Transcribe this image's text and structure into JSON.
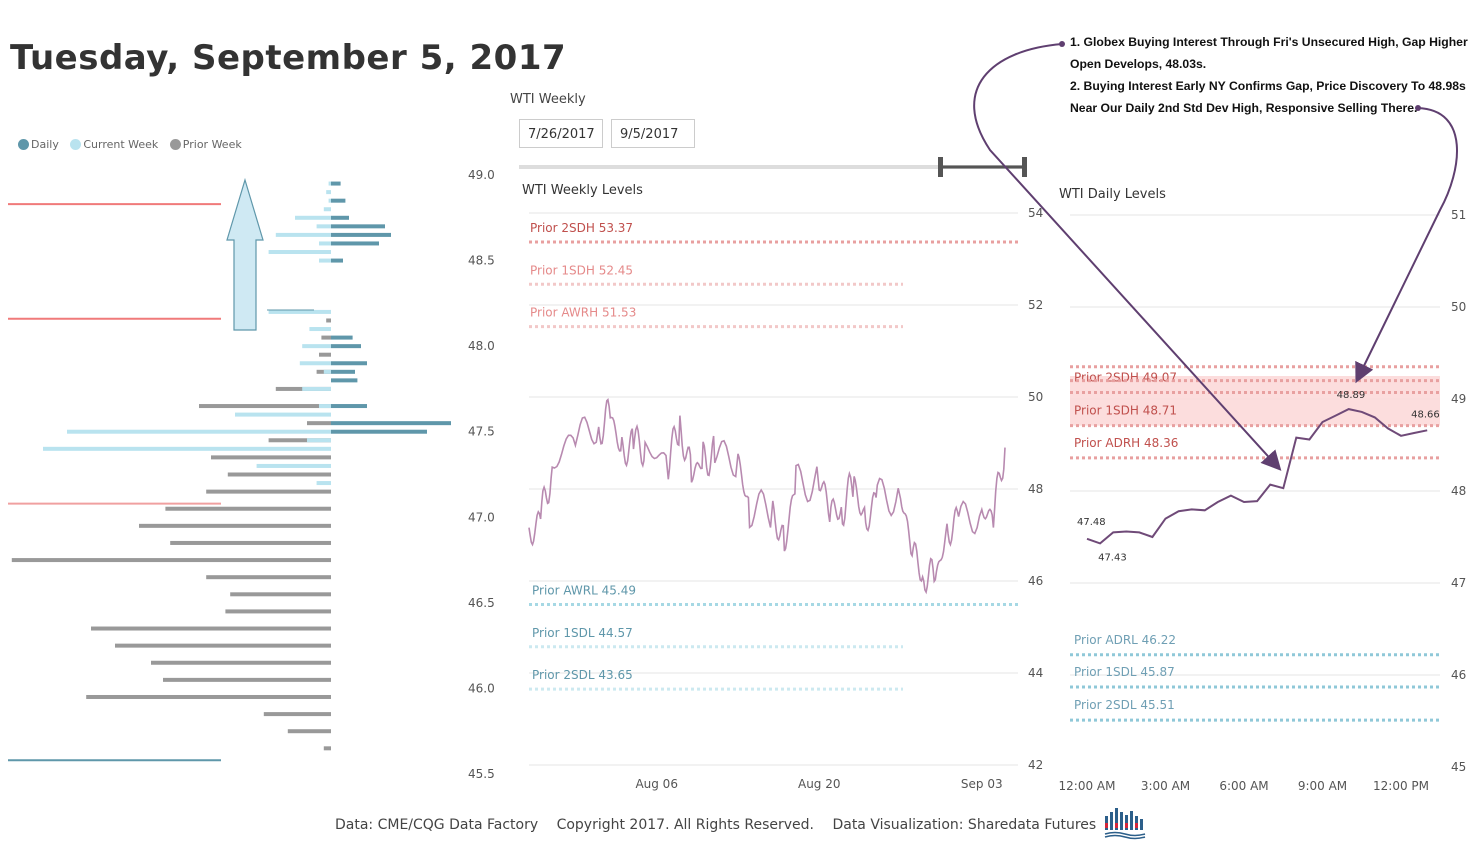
{
  "page": {
    "title": "Tuesday, September 5, 2017"
  },
  "legend": {
    "items": [
      {
        "label": "Daily",
        "color": "#5f97aa"
      },
      {
        "label": "Current Week",
        "color": "#b9e3ef"
      },
      {
        "label": "Prior Week",
        "color": "#999999"
      }
    ]
  },
  "weekly_header": {
    "title": "WTI Weekly",
    "start_date": "7/26/2017",
    "end_date": "9/5/2017"
  },
  "annotation": {
    "lines": [
      "1. Globex Buying Interest Through Fri's Unsecured High, Gap Higher Open Develops, 48.03s.",
      "2. Buying Interest Early NY Confirms Gap, Price Discovery To 48.98s Near Our Daily 2nd Std Dev High, Responsive Selling There."
    ]
  },
  "footer": {
    "source": "Data: CME/CQG Data Factory",
    "copyright": "Copyright 2017. All Rights Reserved.",
    "credit": "Data Visualization: Sharedata Futures"
  },
  "chart_data": [
    {
      "type": "bar",
      "orientation": "horizontal",
      "ylim": [
        45.5,
        49.0
      ],
      "y_ticks": [
        "49.0",
        "48.5",
        "48.0",
        "47.5",
        "47.0",
        "46.5",
        "46.0",
        "45.5"
      ],
      "price_levels": [
        48.95,
        48.9,
        48.85,
        48.8,
        48.75,
        48.7,
        48.65,
        48.6,
        48.55,
        48.5,
        48.2,
        48.15,
        48.1,
        48.05,
        48.0,
        47.95,
        47.9,
        47.85,
        47.8,
        47.75,
        47.7,
        47.65,
        47.6,
        47.55,
        47.5,
        47.45,
        47.4,
        47.35,
        47.3,
        47.25,
        47.2,
        47.15,
        47.1,
        47.05,
        47.0,
        46.95,
        46.9,
        46.85,
        46.8,
        46.75,
        46.7,
        46.65,
        46.6,
        46.55,
        46.5,
        46.45,
        46.4,
        46.35,
        46.3,
        46.25,
        46.2,
        46.15,
        46.1,
        46.05,
        46.0,
        45.95,
        45.9,
        45.85,
        45.8,
        45.75,
        45.7
      ],
      "series": [
        {
          "name": "Daily",
          "side": "right",
          "values": [
            {
              "p": 48.95,
              "v": 8
            },
            {
              "p": 48.85,
              "v": 12
            },
            {
              "p": 48.75,
              "v": 15
            },
            {
              "p": 48.7,
              "v": 45
            },
            {
              "p": 48.65,
              "v": 50
            },
            {
              "p": 48.6,
              "v": 40
            },
            {
              "p": 48.5,
              "v": 10
            },
            {
              "p": 48.05,
              "v": 18
            },
            {
              "p": 48.0,
              "v": 25
            },
            {
              "p": 47.9,
              "v": 30
            },
            {
              "p": 47.85,
              "v": 20
            },
            {
              "p": 47.8,
              "v": 22
            },
            {
              "p": 47.65,
              "v": 30
            },
            {
              "p": 47.55,
              "v": 100
            },
            {
              "p": 47.5,
              "v": 80
            }
          ]
        },
        {
          "name": "Current Week",
          "side": "left",
          "values": [
            {
              "p": 48.95,
              "v": 2
            },
            {
              "p": 48.9,
              "v": 4
            },
            {
              "p": 48.85,
              "v": 2
            },
            {
              "p": 48.8,
              "v": 6
            },
            {
              "p": 48.75,
              "v": 30
            },
            {
              "p": 48.7,
              "v": 12
            },
            {
              "p": 48.65,
              "v": 46
            },
            {
              "p": 48.6,
              "v": 10
            },
            {
              "p": 48.55,
              "v": 52
            },
            {
              "p": 48.5,
              "v": 10
            },
            {
              "p": 48.2,
              "v": 52
            },
            {
              "p": 48.1,
              "v": 18
            },
            {
              "p": 48.0,
              "v": 24
            },
            {
              "p": 47.9,
              "v": 26
            },
            {
              "p": 47.85,
              "v": 6
            },
            {
              "p": 47.75,
              "v": 24
            },
            {
              "p": 47.65,
              "v": 10
            },
            {
              "p": 47.6,
              "v": 80
            },
            {
              "p": 47.5,
              "v": 220
            },
            {
              "p": 47.45,
              "v": 20
            },
            {
              "p": 47.4,
              "v": 240
            },
            {
              "p": 47.3,
              "v": 62
            },
            {
              "p": 47.2,
              "v": 12
            }
          ]
        },
        {
          "name": "Prior Week",
          "side": "left",
          "values": [
            {
              "p": 48.15,
              "v": 4
            },
            {
              "p": 48.05,
              "v": 8
            },
            {
              "p": 47.95,
              "v": 10
            },
            {
              "p": 47.85,
              "v": 12
            },
            {
              "p": 47.75,
              "v": 46
            },
            {
              "p": 47.65,
              "v": 110
            },
            {
              "p": 47.55,
              "v": 20
            },
            {
              "p": 47.45,
              "v": 52
            },
            {
              "p": 47.35,
              "v": 100
            },
            {
              "p": 47.25,
              "v": 86
            },
            {
              "p": 47.15,
              "v": 104
            },
            {
              "p": 47.05,
              "v": 138
            },
            {
              "p": 46.95,
              "v": 160
            },
            {
              "p": 46.85,
              "v": 134
            },
            {
              "p": 46.75,
              "v": 266
            },
            {
              "p": 46.65,
              "v": 104
            },
            {
              "p": 46.55,
              "v": 84
            },
            {
              "p": 46.45,
              "v": 88
            },
            {
              "p": 46.35,
              "v": 200
            },
            {
              "p": 46.25,
              "v": 180
            },
            {
              "p": 46.15,
              "v": 150
            },
            {
              "p": 46.05,
              "v": 140
            },
            {
              "p": 45.95,
              "v": 204
            },
            {
              "p": 45.85,
              "v": 56
            },
            {
              "p": 45.75,
              "v": 36
            },
            {
              "p": 45.65,
              "v": 6
            }
          ]
        }
      ],
      "reference_lines": [
        {
          "price": 48.83,
          "color": "#f07a7a"
        },
        {
          "price": 48.16,
          "color": "#f07a7a"
        },
        {
          "price": 47.08,
          "color": "#f0a0a0"
        },
        {
          "price": 45.58,
          "color": "#5f97aa"
        }
      ]
    },
    {
      "type": "line",
      "title": "WTI Weekly Levels",
      "ylim": [
        42,
        54
      ],
      "y_ticks": [
        "54",
        "52",
        "50",
        "48",
        "46",
        "44",
        "42"
      ],
      "x_labels": [
        "Aug 06",
        "Aug 20",
        "Sep 03"
      ],
      "series": [
        {
          "color": "#b88ab0",
          "values": [
            {
              "x": "2017-07-26",
              "y": 47.0
            },
            {
              "x": "2017-07-27",
              "y": 47.3
            },
            {
              "x": "2017-07-28",
              "y": 48.5
            },
            {
              "x": "2017-07-30",
              "y": 49.2
            },
            {
              "x": "2017-08-01",
              "y": 49.3
            },
            {
              "x": "2017-08-02",
              "y": 49.6
            },
            {
              "x": "2017-08-03",
              "y": 48.8
            },
            {
              "x": "2017-08-04",
              "y": 49.0
            },
            {
              "x": "2017-08-05",
              "y": 48.9
            },
            {
              "x": "2017-08-07",
              "y": 48.6
            },
            {
              "x": "2017-08-08",
              "y": 49.4
            },
            {
              "x": "2017-08-09",
              "y": 48.3
            },
            {
              "x": "2017-08-10",
              "y": 48.6
            },
            {
              "x": "2017-08-11",
              "y": 48.8
            },
            {
              "x": "2017-08-13",
              "y": 48.6
            },
            {
              "x": "2017-08-14",
              "y": 47.6
            },
            {
              "x": "2017-08-16",
              "y": 47.5
            },
            {
              "x": "2017-08-17",
              "y": 46.8
            },
            {
              "x": "2017-08-18",
              "y": 48.1
            },
            {
              "x": "2017-08-20",
              "y": 48.2
            },
            {
              "x": "2017-08-21",
              "y": 47.5
            },
            {
              "x": "2017-08-22",
              "y": 47.6
            },
            {
              "x": "2017-08-23",
              "y": 48.1
            },
            {
              "x": "2017-08-24",
              "y": 47.3
            },
            {
              "x": "2017-08-25",
              "y": 47.8
            },
            {
              "x": "2017-08-27",
              "y": 47.9
            },
            {
              "x": "2017-08-28",
              "y": 46.6
            },
            {
              "x": "2017-08-29",
              "y": 46.2
            },
            {
              "x": "2017-08-30",
              "y": 46.0
            },
            {
              "x": "2017-08-31",
              "y": 47.1
            },
            {
              "x": "2017-09-01",
              "y": 47.3
            },
            {
              "x": "2017-09-03",
              "y": 47.5
            },
            {
              "x": "2017-09-04",
              "y": 47.4
            },
            {
              "x": "2017-09-05",
              "y": 48.9
            }
          ]
        }
      ],
      "levels": [
        {
          "label": "Prior 2SDH 53.37",
          "value": 53.37,
          "color": "#e8a0a0",
          "style": "dotted"
        },
        {
          "label": "Prior 1SDH 52.45",
          "value": 52.45,
          "color": "#f2c8c8",
          "style": "dotted"
        },
        {
          "label": "Prior AWRH 51.53",
          "value": 51.53,
          "color": "#f2c8c8",
          "style": "dotted"
        },
        {
          "label": "Prior AWRL 45.49",
          "value": 45.49,
          "color": "#a6d8e4",
          "style": "dotted"
        },
        {
          "label": "Prior 1SDL 44.57",
          "value": 44.57,
          "color": "#cce9f0",
          "style": "dotted"
        },
        {
          "label": "Prior 2SDL 43.65",
          "value": 43.65,
          "color": "#cce9f0",
          "style": "dotted"
        }
      ]
    },
    {
      "type": "line",
      "title": "WTI Daily Levels",
      "ylim": [
        45,
        51.3
      ],
      "y_ticks": [
        "51",
        "50",
        "49",
        "48",
        "47",
        "46",
        "45"
      ],
      "x_labels": [
        "12:00 AM",
        "3:00 AM",
        "6:00 AM",
        "9:00 AM",
        "12:00 PM"
      ],
      "series": [
        {
          "color": "#6f4a78",
          "values": [
            {
              "x": "00:00",
              "y": 47.48
            },
            {
              "x": "00:30",
              "y": 47.43
            },
            {
              "x": "01:00",
              "y": 47.55
            },
            {
              "x": "01:30",
              "y": 47.56
            },
            {
              "x": "02:00",
              "y": 47.55
            },
            {
              "x": "02:30",
              "y": 47.5
            },
            {
              "x": "03:00",
              "y": 47.7
            },
            {
              "x": "03:30",
              "y": 47.78
            },
            {
              "x": "04:00",
              "y": 47.8
            },
            {
              "x": "04:30",
              "y": 47.79
            },
            {
              "x": "05:00",
              "y": 47.88
            },
            {
              "x": "05:30",
              "y": 47.95
            },
            {
              "x": "06:00",
              "y": 47.88
            },
            {
              "x": "06:30",
              "y": 47.89
            },
            {
              "x": "07:00",
              "y": 48.07
            },
            {
              "x": "07:30",
              "y": 48.03
            },
            {
              "x": "08:00",
              "y": 48.58
            },
            {
              "x": "08:30",
              "y": 48.56
            },
            {
              "x": "09:00",
              "y": 48.75
            },
            {
              "x": "09:30",
              "y": 48.82
            },
            {
              "x": "10:00",
              "y": 48.89
            },
            {
              "x": "10:30",
              "y": 48.86
            },
            {
              "x": "11:00",
              "y": 48.8
            },
            {
              "x": "11:30",
              "y": 48.68
            },
            {
              "x": "12:00",
              "y": 48.6
            },
            {
              "x": "12:30",
              "y": 48.63
            },
            {
              "x": "13:00",
              "y": 48.66
            }
          ]
        }
      ],
      "point_labels": [
        {
          "x": "00:00",
          "y": 47.48,
          "label": "47.48"
        },
        {
          "x": "00:30",
          "y": 47.43,
          "label": "47.43"
        },
        {
          "x": "10:00",
          "y": 48.89,
          "label": "48.89"
        },
        {
          "x": "13:00",
          "y": 48.66,
          "label": "48.66"
        }
      ],
      "levels": [
        {
          "label": "Prior 2SDH 49.07",
          "value": 49.07,
          "color": "#e8a0a0",
          "style": "dotted"
        },
        {
          "label": "Prior 1SDH 48.71",
          "value": 48.71,
          "color": "#e8a0a0",
          "style": "dotted"
        },
        {
          "label": "Prior ADRH 48.36",
          "value": 48.36,
          "color": "#e8a0a0",
          "style": "dotted"
        },
        {
          "label": "Prior ADRL 46.22",
          "value": 46.22,
          "color": "#8fc8d8",
          "style": "dotted"
        },
        {
          "label": "Prior 1SDL 45.87",
          "value": 45.87,
          "color": "#8fc8d8",
          "style": "dotted"
        },
        {
          "label": "Prior 2SDL 45.51",
          "value": 45.51,
          "color": "#8fc8d8",
          "style": "dotted"
        }
      ],
      "band": {
        "low": 48.95,
        "high": 49.25,
        "color": "#fcd7d7"
      }
    }
  ]
}
